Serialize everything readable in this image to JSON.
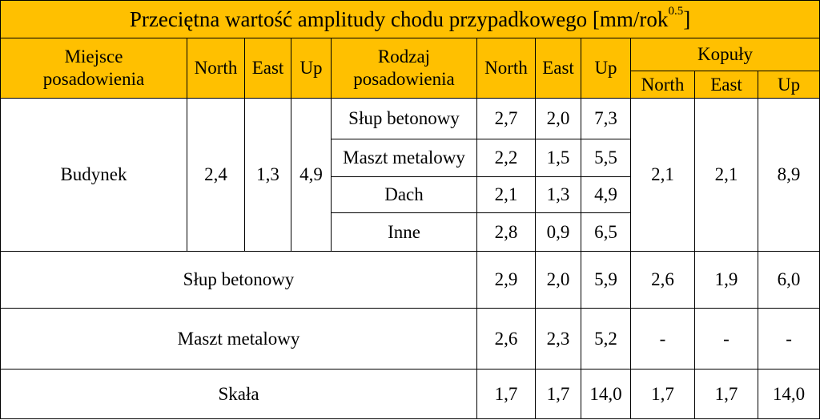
{
  "title": {
    "text": "Przeciętna wartość amplitudy chodu przypadkowego [mm/rok",
    "sup": "0.5",
    "end": "]"
  },
  "header": {
    "row1": [
      "Miejsce posadowienia",
      "North",
      "East",
      "Up",
      "Rodzaj posadowienia",
      "North",
      "East",
      "Up",
      "Kopuły"
    ],
    "row2": [
      "North",
      "East",
      "Up"
    ]
  },
  "body": {
    "budynek": {
      "label": "Budynek",
      "values": [
        "2,4",
        "1,3",
        "4,9"
      ],
      "subrows": [
        {
          "type": "Słup betonowy",
          "values": [
            "2,7",
            "2,0",
            "7,3"
          ]
        },
        {
          "type": "Maszt metalowy",
          "values": [
            "2,2",
            "1,5",
            "5,5"
          ]
        },
        {
          "type": "Dach",
          "values": [
            "2,1",
            "1,3",
            "4,9"
          ]
        },
        {
          "type": "Inne",
          "values": [
            "2,8",
            "0,9",
            "6,5"
          ]
        }
      ],
      "kopuly": [
        "2,1",
        "2,1",
        "8,9"
      ]
    },
    "rows": [
      {
        "label": "Słup betonowy",
        "values": [
          "2,9",
          "2,0",
          "5,9",
          "2,6",
          "1,9",
          "6,0"
        ]
      },
      {
        "label": "Maszt metalowy",
        "values": [
          "2,6",
          "2,3",
          "5,2",
          "-",
          "-",
          "-"
        ]
      },
      {
        "label": "Skała",
        "values": [
          "1,7",
          "1,7",
          "14,0",
          "1,7",
          "1,7",
          "14,0"
        ]
      }
    ]
  }
}
